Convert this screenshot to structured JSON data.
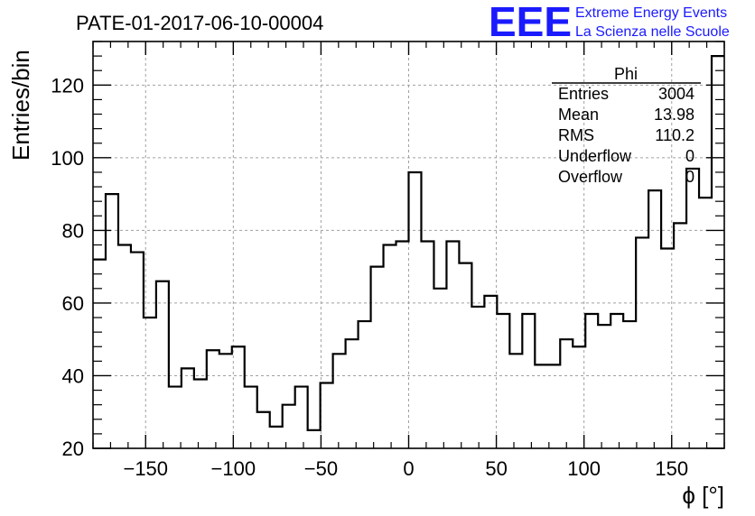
{
  "chart_data": {
    "type": "bar",
    "title": "PATE-01-2017-06-10-00004",
    "xlabel": "ϕ [°]",
    "ylabel": "Entries/bin",
    "xlim": [
      -180,
      180
    ],
    "ylim": [
      20,
      132
    ],
    "grid": true,
    "x_ticks": [
      "−150",
      "−100",
      "−50",
      "0",
      "50",
      "100",
      "150"
    ],
    "y_ticks": [
      "20",
      "40",
      "60",
      "80",
      "100",
      "120"
    ],
    "bin_width": 7.2,
    "bin_low_edges": [
      -180,
      -172.8,
      -165.6,
      -158.4,
      -151.2,
      -144,
      -136.8,
      -129.6,
      -122.4,
      -115.2,
      -108,
      -100.8,
      -93.6,
      -86.4,
      -79.2,
      -72,
      -64.8,
      -57.6,
      -50.4,
      -43.2,
      -36,
      -28.8,
      -21.6,
      -14.4,
      -7.2,
      0,
      7.2,
      14.4,
      21.6,
      28.8,
      36,
      43.2,
      50.4,
      57.6,
      64.8,
      72,
      79.2,
      86.4,
      93.6,
      100.8,
      108,
      115.2,
      122.4,
      129.6,
      136.8,
      144,
      151.2,
      158.4,
      165.6,
      172.8
    ],
    "values": [
      72,
      90,
      76,
      74,
      56,
      66,
      37,
      42,
      39,
      47,
      46,
      48,
      37,
      30,
      26,
      32,
      37,
      25,
      38,
      46,
      50,
      55,
      70,
      76,
      77,
      96,
      77,
      64,
      77,
      71,
      59,
      62,
      57,
      46,
      57,
      43,
      43,
      50,
      48,
      57,
      54,
      57,
      55,
      78,
      91,
      75,
      82,
      97,
      89,
      128
    ],
    "stats_box": {
      "name": "Phi",
      "rows": [
        {
          "label": "Entries",
          "value": "3004"
        },
        {
          "label": "Mean",
          "value": "13.98"
        },
        {
          "label": "RMS",
          "value": "110.2"
        },
        {
          "label": "Underflow",
          "value": "0"
        },
        {
          "label": "Overflow",
          "value": "0"
        }
      ]
    },
    "colors": {
      "line": "#000000",
      "grid": "#a0a0a0",
      "logo": "#1a1aff"
    }
  },
  "logo": {
    "mark": "EEE",
    "line1": "Extreme Energy Events",
    "line2": "La Scienza nelle Scuole"
  }
}
